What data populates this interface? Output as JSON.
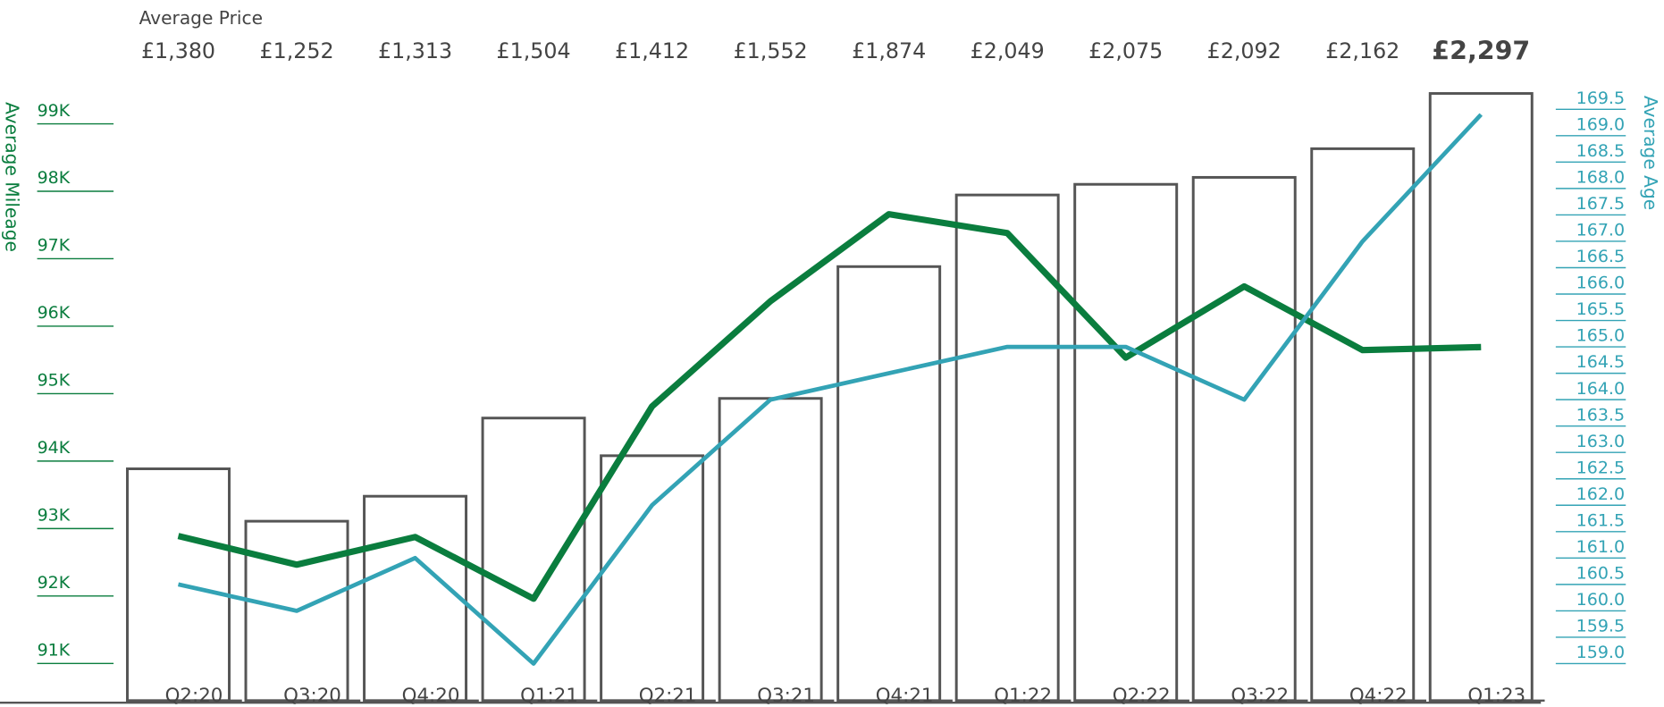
{
  "chart_data": {
    "type": "combo",
    "ylabel": "Average Mileage",
    "y2label": "Average Age",
    "categories": [
      "Q2:20",
      "Q3:20",
      "Q4:20",
      "Q1:21",
      "Q2:21",
      "Q3:21",
      "Q4:21",
      "Q1:22",
      "Q2:22",
      "Q3:22",
      "Q4:22",
      "Q1:23"
    ],
    "series": [
      {
        "name": "Average Price",
        "type": "bar",
        "color": "#555555",
        "values": [
          1380,
          1252,
          1313,
          1504,
          1412,
          1552,
          1874,
          2049,
          2075,
          2092,
          2162,
          2297
        ],
        "value_labels": [
          "£1,380",
          "£1,252",
          "£1,313",
          "£1,504",
          "£1,412",
          "£1,552",
          "£1,874",
          "£2,049",
          "£2,075",
          "£2,092",
          "£2,162",
          "£2,297"
        ]
      },
      {
        "name": "Average Mileage",
        "type": "line",
        "color": "#0a7d3e",
        "axis": "y",
        "values": [
          92890,
          92465,
          92875,
          91960,
          94810,
          96370,
          97660,
          97380,
          95535,
          96590,
          95645,
          95690
        ]
      },
      {
        "name": "Average Age",
        "type": "line",
        "color": "#33a3b5",
        "axis": "y2",
        "values": [
          160.5,
          160.0,
          161.0,
          159.0,
          162.0,
          164.0,
          164.5,
          165.0,
          165.0,
          164.0,
          167.0,
          169.4
        ]
      }
    ],
    "ylim": [
      90450,
      99450
    ],
    "yticks": [
      {
        "value": 91000,
        "label": "91K"
      },
      {
        "value": 92000,
        "label": "92K"
      },
      {
        "value": 93000,
        "label": "93K"
      },
      {
        "value": 94000,
        "label": "94K"
      },
      {
        "value": 95000,
        "label": "95K"
      },
      {
        "value": 96000,
        "label": "96K"
      },
      {
        "value": 97000,
        "label": "97K"
      },
      {
        "value": 98000,
        "label": "98K"
      },
      {
        "value": 99000,
        "label": "99K"
      }
    ],
    "y2lim": [
      158.3,
      169.8
    ],
    "y2ticks": [
      {
        "value": 159,
        "label": "159.0"
      },
      159.5,
      {
        "value": 160,
        "label": "160.0"
      },
      160.5,
      {
        "value": 161,
        "label": "161.0"
      },
      161.5,
      {
        "value": 162,
        "label": "162.0"
      },
      162.5,
      {
        "value": 163,
        "label": "163.0"
      },
      163.5,
      {
        "value": 164,
        "label": "164.0"
      },
      164.5,
      {
        "value": 165,
        "label": "165.0"
      },
      165.5,
      {
        "value": 166,
        "label": "166.0"
      },
      166.5,
      {
        "value": 167,
        "label": "167.0"
      },
      167.5,
      {
        "value": 168,
        "label": "168.0"
      },
      168.5,
      {
        "value": 169,
        "label": "169.0"
      },
      169.5
    ]
  }
}
